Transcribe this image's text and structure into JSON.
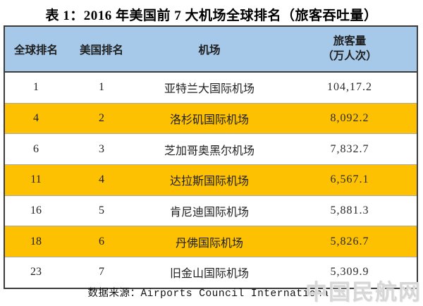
{
  "chart_data": {
    "type": "table",
    "title": "表 1：2016 年美国前 7 大机场全球排名（旅客吞吐量）",
    "columns": [
      "全球排名",
      "美国排名",
      "机场",
      "旅客量（万人次）"
    ],
    "column4_lines": [
      "旅客量",
      "（万人次）"
    ],
    "rows": [
      {
        "global_rank": "1",
        "us_rank": "1",
        "airport": "亚特兰大国际机场",
        "passengers_wan": "104,17.2",
        "highlighted": false
      },
      {
        "global_rank": "4",
        "us_rank": "2",
        "airport": "洛杉矶国际机场",
        "passengers_wan": "8,092.2",
        "highlighted": true
      },
      {
        "global_rank": "6",
        "us_rank": "3",
        "airport": "芝加哥奥黑尔机场",
        "passengers_wan": "7,832.7",
        "highlighted": false
      },
      {
        "global_rank": "11",
        "us_rank": "4",
        "airport": "达拉斯国际机场",
        "passengers_wan": "6,567.1",
        "highlighted": true
      },
      {
        "global_rank": "16",
        "us_rank": "5",
        "airport": "肯尼迪国际机场",
        "passengers_wan": "5,881.3",
        "highlighted": false
      },
      {
        "global_rank": "18",
        "us_rank": "6",
        "airport": "丹佛国际机场",
        "passengers_wan": "5,826.7",
        "highlighted": true
      },
      {
        "global_rank": "23",
        "us_rank": "7",
        "airport": "旧金山国际机场",
        "passengers_wan": "5,309.9",
        "highlighted": false
      }
    ],
    "colors": {
      "header_bg": "#a6c9ea",
      "highlight_row_bg": "#fdc101",
      "row_bg": "#ffffff",
      "border": "#3b3b3b",
      "text": "#1f1f1f",
      "watermark": "#d7d7d7"
    },
    "layout": {
      "grid": "horizontal-row-separators-only",
      "legend": "none",
      "header_rows": 1,
      "data_rows": 7
    }
  },
  "source": "数据来源：Airports Council International",
  "watermark": "中国民航网"
}
